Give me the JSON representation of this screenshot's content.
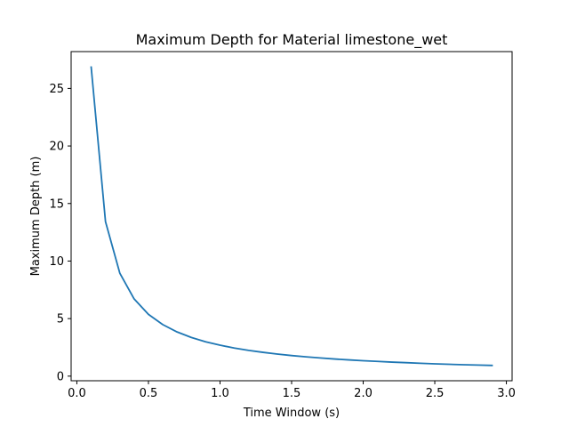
{
  "chart_data": {
    "type": "line",
    "title": "Maximum Depth for Material limestone_wet",
    "xlabel": "Time Window (s)",
    "ylabel": "Maximum Depth (m)",
    "xlim": [
      -0.04,
      3.04
    ],
    "ylim": [
      -0.4,
      28.2
    ],
    "x_ticks": [
      0.0,
      0.5,
      1.0,
      1.5,
      2.0,
      2.5,
      3.0
    ],
    "x_tick_labels": [
      "0.0",
      "0.5",
      "1.0",
      "1.5",
      "2.0",
      "2.5",
      "3.0"
    ],
    "y_ticks": [
      0,
      5,
      10,
      15,
      20,
      25
    ],
    "y_tick_labels": [
      "0",
      "5",
      "10",
      "15",
      "20",
      "25"
    ],
    "grid": false,
    "legend": "none",
    "series": [
      {
        "color": "#1f77b4",
        "x": [
          0.1,
          0.2,
          0.3,
          0.4,
          0.5,
          0.6,
          0.7,
          0.8,
          0.9,
          1.0,
          1.1,
          1.2,
          1.3,
          1.4,
          1.5,
          1.6,
          1.7,
          1.8,
          1.9,
          2.0,
          2.1,
          2.2,
          2.3,
          2.4,
          2.5,
          2.6,
          2.7,
          2.8,
          2.9
        ],
        "y": [
          26.85,
          13.43,
          8.95,
          6.71,
          5.37,
          4.48,
          3.84,
          3.36,
          2.98,
          2.69,
          2.44,
          2.24,
          2.07,
          1.92,
          1.79,
          1.68,
          1.58,
          1.49,
          1.41,
          1.34,
          1.28,
          1.22,
          1.17,
          1.12,
          1.07,
          1.03,
          0.99,
          0.96,
          0.93
        ]
      }
    ]
  }
}
